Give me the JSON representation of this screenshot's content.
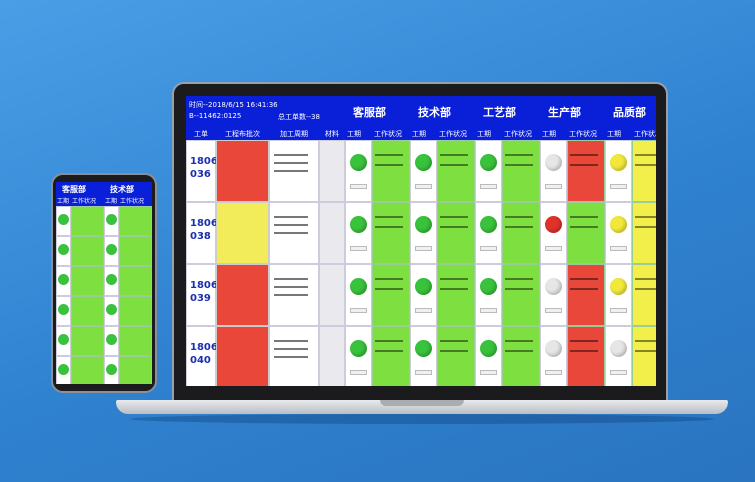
{
  "header": {
    "time": "时间--2018/6/15 16:41:36",
    "code": "B--11462:0125",
    "total": "总工单数--38"
  },
  "columns": [
    "工单",
    "工程布批次",
    "加工周期",
    "材料"
  ],
  "dept_columns": [
    "工期",
    "工作状况"
  ],
  "departments": [
    "客服部",
    "技术部",
    "工艺部",
    "生产部",
    "品质部"
  ],
  "rows": [
    {
      "order": [
        "1806",
        "036"
      ],
      "batch_color": "#e8473a",
      "depts": [
        {
          "light": "#39c23c",
          "status": "#7ee040"
        },
        {
          "light": "#39c23c",
          "status": "#7ee040"
        },
        {
          "light": "#39c23c",
          "status": "#7ee040"
        },
        {
          "light": "#e6e6e6",
          "status": "#e8473a"
        },
        {
          "light": "#f2e83a",
          "status": "#f2ef4a"
        }
      ]
    },
    {
      "order": [
        "1806",
        "038"
      ],
      "batch_color": "#f2ec5a",
      "depts": [
        {
          "light": "#39c23c",
          "status": "#7ee040"
        },
        {
          "light": "#39c23c",
          "status": "#7ee040"
        },
        {
          "light": "#39c23c",
          "status": "#7ee040"
        },
        {
          "light": "#e0322a",
          "status": "#7ee040"
        },
        {
          "light": "#f2e83a",
          "status": "#f2ef4a"
        }
      ]
    },
    {
      "order": [
        "1806",
        "039"
      ],
      "batch_color": "#e8473a",
      "depts": [
        {
          "light": "#39c23c",
          "status": "#7ee040"
        },
        {
          "light": "#39c23c",
          "status": "#7ee040"
        },
        {
          "light": "#39c23c",
          "status": "#7ee040"
        },
        {
          "light": "#e6e6e6",
          "status": "#e8473a"
        },
        {
          "light": "#f2e83a",
          "status": "#f2ef4a"
        }
      ]
    },
    {
      "order": [
        "1806",
        "040"
      ],
      "batch_color": "#e8473a",
      "depts": [
        {
          "light": "#39c23c",
          "status": "#7ee040"
        },
        {
          "light": "#39c23c",
          "status": "#7ee040"
        },
        {
          "light": "#39c23c",
          "status": "#7ee040"
        },
        {
          "light": "#e6e6e6",
          "status": "#e8473a"
        },
        {
          "light": "#e6e6e6",
          "status": "#f2ef4a"
        }
      ]
    }
  ]
}
